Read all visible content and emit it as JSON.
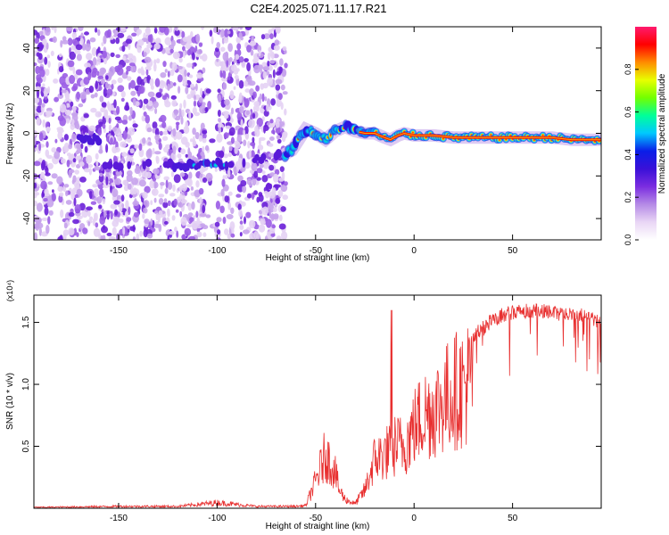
{
  "title": "C2E4.2025.071.11.17.R21",
  "chart_data": [
    {
      "type": "heatmap",
      "title": "C2E4.2025.071.11.17.R21",
      "xlabel": "Height of straight line (km)",
      "ylabel": "Frequency (Hz)",
      "xlim": [
        -193,
        95
      ],
      "ylim": [
        -50,
        50
      ],
      "x_ticks": [
        -150,
        -100,
        -50,
        0,
        50
      ],
      "y_ticks": [
        -40,
        -20,
        0,
        20,
        40
      ],
      "colorbar": {
        "label": "Normalized spectral amplitude",
        "range": [
          0,
          1
        ],
        "ticks": [
          "0.0",
          "0.2",
          "0.4",
          "0.6",
          "0.8"
        ],
        "colormap": [
          "#ffffff",
          "#e9d6f5",
          "#b58ae6",
          "#7b2de0",
          "#3a10d8",
          "#0a1ee8",
          "#00c8ff",
          "#00ff9a",
          "#73ff00",
          "#e8ff00",
          "#ff8c00",
          "#ff0000",
          "#ff1a6e"
        ]
      },
      "noise_region_x": [
        -193,
        -65
      ],
      "signal_track": {
        "x": [
          -160,
          -120,
          -105,
          -100,
          -95,
          -66,
          -62,
          -55,
          -50,
          -45,
          -40,
          -35,
          -30,
          -25,
          -20,
          -15,
          -12,
          -8,
          -5,
          0,
          5,
          10,
          20,
          30,
          40,
          50,
          60,
          70,
          80,
          90,
          95
        ],
        "y": [
          -15,
          -15,
          -15,
          -14,
          -15,
          -10,
          -8,
          2,
          0,
          -3,
          1,
          3,
          1,
          0,
          0,
          -2,
          -3,
          -1,
          0,
          -1,
          -1,
          -1,
          -2,
          -2,
          -2,
          -2,
          -2,
          -2,
          -3,
          -3,
          -3
        ]
      }
    },
    {
      "type": "line",
      "xlabel": "Height of straight line (km)",
      "ylabel": "SNR (10 * v/v)",
      "y_multiplier": "(x10⁴)",
      "xlim": [
        -193,
        95
      ],
      "ylim": [
        0,
        1.72
      ],
      "x_ticks": [
        -150,
        -100,
        -50,
        0,
        50
      ],
      "y_ticks": [
        "0.5",
        "1.0",
        "1.5"
      ],
      "color": "#e83030",
      "series": [
        {
          "x": [
            -193,
            -170,
            -150,
            -120,
            -100,
            -80,
            -60,
            -55,
            -50,
            -45,
            -40,
            -38,
            -35,
            -30,
            -25,
            -20,
            -15,
            -10,
            -5,
            0,
            5,
            10,
            15,
            20,
            25,
            30,
            35,
            40,
            45,
            50,
            55,
            60,
            65,
            70,
            75,
            80,
            85,
            90,
            95
          ],
          "y": [
            0.01,
            0.015,
            0.02,
            0.02,
            0.06,
            0.02,
            0.02,
            0.03,
            0.3,
            0.6,
            0.4,
            0.2,
            0.1,
            0.05,
            0.2,
            0.55,
            0.6,
            0.7,
            0.7,
            0.9,
            1.05,
            1.1,
            1.2,
            1.3,
            1.35,
            1.45,
            1.52,
            1.58,
            1.62,
            1.64,
            1.65,
            1.65,
            1.65,
            1.64,
            1.63,
            1.62,
            1.62,
            1.6,
            1.55
          ]
        }
      ]
    }
  ]
}
